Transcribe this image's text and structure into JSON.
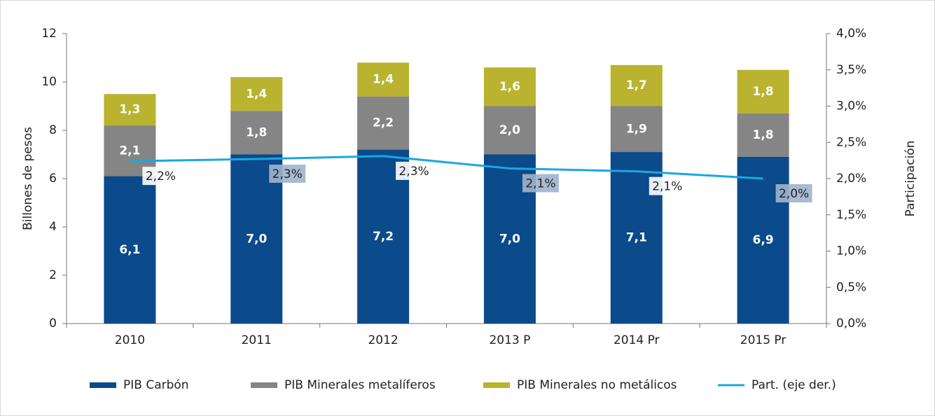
{
  "chart_data": {
    "type": "bar",
    "categories": [
      "2010",
      "2011",
      "2012",
      "2013 P",
      "2014 Pr",
      "2015 Pr"
    ],
    "ylabel": "Billones de pesos",
    "y2label": "Participación",
    "ylim": [
      0,
      12
    ],
    "yticks": [
      0,
      2,
      4,
      6,
      8,
      10,
      12
    ],
    "y2lim": [
      0,
      4
    ],
    "y2ticks": [
      {
        "value": 0,
        "label": "0,0%"
      },
      {
        "value": 0.5,
        "label": "0,5%"
      },
      {
        "value": 1,
        "label": "1,0%"
      },
      {
        "value": 1.5,
        "label": "1,5%"
      },
      {
        "value": 2,
        "label": "2,0%"
      },
      {
        "value": 2.5,
        "label": "2,5%"
      },
      {
        "value": 3,
        "label": "3,0%"
      },
      {
        "value": 3.5,
        "label": "3,5%"
      },
      {
        "value": 4,
        "label": "4,0%"
      }
    ],
    "stacked": true,
    "series": [
      {
        "name": "PIB Carbón",
        "color": "#0b4a8b",
        "values": [
          6.1,
          7.0,
          7.2,
          7.0,
          7.1,
          6.9
        ],
        "value_labels": [
          "6,1",
          "7,0",
          "7,2",
          "7,0",
          "7,1",
          "6,9"
        ]
      },
      {
        "name": "PIB Minerales metalíferos",
        "color": "#858585",
        "values": [
          2.1,
          1.8,
          2.2,
          2.0,
          1.9,
          1.8
        ],
        "value_labels": [
          "2,1",
          "1,8",
          "2,2",
          "2,0",
          "1,9",
          "1,8"
        ]
      },
      {
        "name": "PIB Minerales no metálicos",
        "color": "#b9b32f",
        "values": [
          1.3,
          1.4,
          1.4,
          1.6,
          1.7,
          1.8
        ],
        "value_labels": [
          "1,3",
          "1,4",
          "1,4",
          "1,6",
          "1,7",
          "1,8"
        ]
      },
      {
        "name": "Part. (eje der.)",
        "type": "line",
        "axis": "y2",
        "color": "#1aa7e1",
        "values": [
          2.24,
          2.27,
          2.31,
          2.14,
          2.1,
          2.0
        ],
        "value_labels": [
          "2,2%",
          "2,3%",
          "2,3%",
          "2,1%",
          "2,1%",
          "2,0%"
        ]
      }
    ],
    "legend": "bottom"
  }
}
